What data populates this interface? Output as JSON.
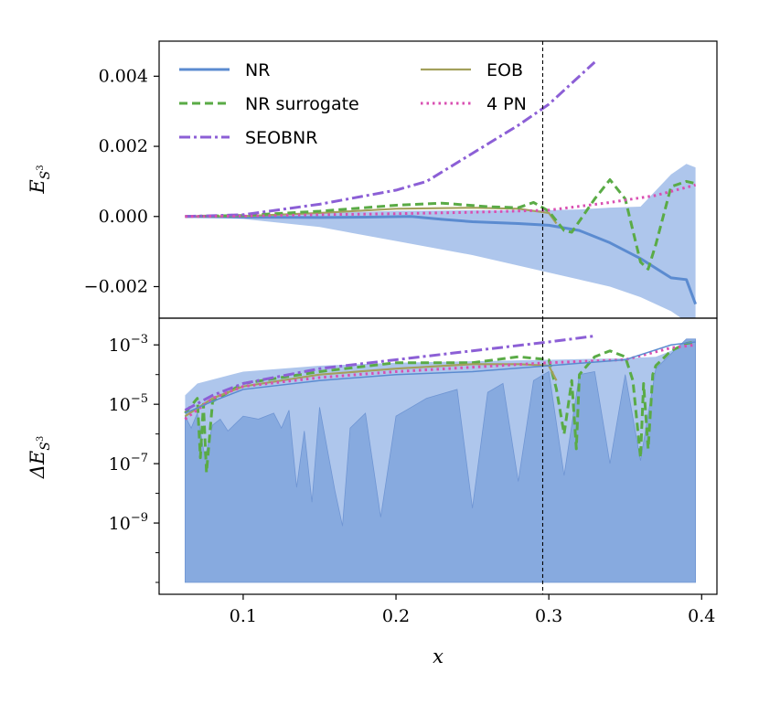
{
  "colors": {
    "nr": "#5b8bd0",
    "nr_surrogate": "#5aab46",
    "seobnr": "#8c5fd6",
    "eob": "#a3a05c",
    "pn4": "#d94fb2",
    "band_light": "#aec6ec",
    "band_dark": "#87aadf",
    "marker_line": "#000000"
  },
  "chart_data": [
    {
      "id": "top",
      "type": "line",
      "ylabel": "E_{S^3}",
      "xlim": [
        0.045,
        0.41
      ],
      "ylim": [
        -0.0029,
        0.005
      ],
      "yticks": [
        -0.002,
        0.0,
        0.002,
        0.004
      ],
      "ytick_labels": [
        "−0.002",
        "0.000",
        "0.002",
        "0.004"
      ],
      "vline_x": 0.296,
      "legend": {
        "placement": "top-left",
        "entries": [
          {
            "key": "nr",
            "label": "NR",
            "style": "solid"
          },
          {
            "key": "eob",
            "label": "EOB",
            "style": "solid"
          },
          {
            "key": "nr_surrogate",
            "label": "NR surrogate",
            "style": "dashed"
          },
          {
            "key": "pn4",
            "label": "4 PN",
            "style": "dotted"
          },
          {
            "key": "seobnr",
            "label": "SEOBNR",
            "style": "dashdot"
          }
        ]
      },
      "band": {
        "x": [
          0.062,
          0.1,
          0.15,
          0.2,
          0.25,
          0.3,
          0.32,
          0.34,
          0.36,
          0.38,
          0.39,
          0.396
        ],
        "upper": [
          0.0,
          3e-05,
          0.0001,
          0.00016,
          0.00018,
          0.00018,
          0.0002,
          0.00025,
          0.00028,
          0.0012,
          0.0015,
          0.0014
        ],
        "lower": [
          0.0,
          -7e-05,
          -0.0003,
          -0.0007,
          -0.0011,
          -0.0016,
          -0.0018,
          -0.002,
          -0.0023,
          -0.0027,
          -0.003,
          -0.003
        ]
      },
      "series": [
        {
          "key": "nr",
          "x": [
            0.062,
            0.1,
            0.15,
            0.18,
            0.21,
            0.23,
            0.25,
            0.28,
            0.3,
            0.32,
            0.34,
            0.36,
            0.38,
            0.39,
            0.396
          ],
          "y": [
            0.0,
            -2e-05,
            -3e-05,
            -2e-05,
            0.0,
            -8e-05,
            -0.00015,
            -0.0002,
            -0.00025,
            -0.0004,
            -0.00075,
            -0.0012,
            -0.00175,
            -0.0018,
            -0.0025
          ]
        },
        {
          "key": "eob",
          "x": [
            0.062,
            0.1,
            0.15,
            0.2,
            0.25,
            0.28,
            0.3,
            0.305
          ],
          "y": [
            0.0,
            1e-05,
            0.0001,
            0.00022,
            0.00025,
            0.00022,
            0.0001,
            -0.0002
          ]
        },
        {
          "key": "nr_surrogate",
          "x": [
            0.062,
            0.1,
            0.15,
            0.2,
            0.23,
            0.26,
            0.28,
            0.29,
            0.3,
            0.31,
            0.315,
            0.33,
            0.34,
            0.35,
            0.36,
            0.365,
            0.37,
            0.38,
            0.39,
            0.395
          ],
          "y": [
            0.0,
            3e-05,
            0.00015,
            0.00032,
            0.00038,
            0.00028,
            0.00025,
            0.0004,
            0.00015,
            -0.0004,
            -0.00045,
            0.0005,
            0.00105,
            0.0005,
            -0.0013,
            -0.0015,
            -0.0008,
            0.00085,
            0.001,
            0.00095
          ]
        },
        {
          "key": "seobnr",
          "x": [
            0.062,
            0.1,
            0.15,
            0.2,
            0.22,
            0.25,
            0.28,
            0.3,
            0.32,
            0.33
          ],
          "y": [
            0.0,
            5e-05,
            0.00035,
            0.00075,
            0.001,
            0.0018,
            0.0026,
            0.0032,
            0.004,
            0.0044
          ]
        },
        {
          "key": "pn4",
          "x": [
            0.062,
            0.1,
            0.15,
            0.2,
            0.25,
            0.3,
            0.34,
            0.37,
            0.396
          ],
          "y": [
            0.0,
            1e-05,
            5e-05,
            8e-05,
            0.00012,
            0.00018,
            0.0004,
            0.0006,
            0.0009
          ]
        }
      ]
    },
    {
      "id": "bottom",
      "type": "line",
      "ylabel": "ΔE_{S^3}",
      "xlabel": "x",
      "yscale": "log",
      "xlim": [
        0.045,
        0.41
      ],
      "ylim_exp": [
        -11.4,
        -2.1
      ],
      "xticks": [
        0.1,
        0.2,
        0.3,
        0.4
      ],
      "xtick_labels": [
        "0.1",
        "0.2",
        "0.3",
        "0.4"
      ],
      "yticks_exp": [
        -9,
        -7,
        -5,
        -3
      ],
      "ytick_bases": [
        "10",
        "10",
        "10",
        "10"
      ],
      "ytick_exps": [
        "−9",
        "−7",
        "−5",
        "−3"
      ],
      "vline_x": 0.296,
      "band_light": {
        "floor_exp": -11,
        "x": [
          0.062,
          0.07,
          0.1,
          0.15,
          0.2,
          0.25,
          0.3,
          0.35,
          0.37,
          0.38,
          0.39,
          0.396
        ],
        "y_exp": [
          -4.7,
          -4.3,
          -3.9,
          -3.7,
          -3.6,
          -3.55,
          -3.5,
          -3.45,
          -3.4,
          -3.2,
          -2.9,
          -2.9
        ]
      },
      "band_dark": {
        "floor_exp": -11,
        "x": [
          0.062,
          0.066,
          0.07,
          0.075,
          0.08,
          0.085,
          0.09,
          0.1,
          0.11,
          0.12,
          0.125,
          0.13,
          0.135,
          0.14,
          0.145,
          0.15,
          0.16,
          0.165,
          0.17,
          0.18,
          0.19,
          0.2,
          0.21,
          0.22,
          0.24,
          0.25,
          0.26,
          0.27,
          0.28,
          0.29,
          0.3,
          0.31,
          0.32,
          0.33,
          0.34,
          0.35,
          0.36,
          0.37,
          0.38,
          0.39,
          0.396
        ],
        "y_exp": [
          -5.4,
          -5.8,
          -5.3,
          -6.8,
          -5.7,
          -5.5,
          -5.9,
          -5.4,
          -5.5,
          -5.3,
          -5.8,
          -5.2,
          -7.8,
          -5.9,
          -8.3,
          -5.1,
          -7.9,
          -9.1,
          -5.8,
          -5.3,
          -8.8,
          -5.4,
          -5.1,
          -4.8,
          -4.5,
          -8.5,
          -4.6,
          -4.3,
          -7.6,
          -4.2,
          -3.9,
          -7.4,
          -4.0,
          -3.9,
          -7.0,
          -4.0,
          -6.9,
          -3.8,
          -3.3,
          -2.8,
          -2.8
        ]
      },
      "series": [
        {
          "key": "nr_surrogate",
          "x": [
            0.062,
            0.07,
            0.072,
            0.074,
            0.076,
            0.08,
            0.1,
            0.15,
            0.2,
            0.25,
            0.28,
            0.3,
            0.305,
            0.31,
            0.315,
            0.318,
            0.32,
            0.33,
            0.34,
            0.35,
            0.355,
            0.36,
            0.362,
            0.365,
            0.368,
            0.37,
            0.38,
            0.39,
            0.396
          ],
          "y_exp": [
            -5.3,
            -4.8,
            -6.8,
            -5.0,
            -7.3,
            -4.9,
            -4.3,
            -3.9,
            -3.6,
            -3.6,
            -3.4,
            -3.5,
            -4.5,
            -6.0,
            -4.2,
            -6.5,
            -4.0,
            -3.4,
            -3.2,
            -3.4,
            -4.2,
            -6.8,
            -4.3,
            -6.5,
            -4.0,
            -3.7,
            -3.2,
            -2.95,
            -2.9
          ]
        },
        {
          "key": "seobnr",
          "x": [
            0.062,
            0.08,
            0.1,
            0.15,
            0.2,
            0.25,
            0.3,
            0.33
          ],
          "y_exp": [
            -5.2,
            -4.7,
            -4.3,
            -3.8,
            -3.5,
            -3.2,
            -2.9,
            -2.7
          ]
        },
        {
          "key": "eob",
          "x": [
            0.062,
            0.08,
            0.1,
            0.15,
            0.2,
            0.25,
            0.28,
            0.3,
            0.305
          ],
          "y_exp": [
            -5.4,
            -4.8,
            -4.4,
            -4.0,
            -3.8,
            -3.65,
            -3.65,
            -3.7,
            -4.2
          ]
        },
        {
          "key": "pn4",
          "x": [
            0.062,
            0.08,
            0.1,
            0.15,
            0.2,
            0.25,
            0.3,
            0.35,
            0.38,
            0.396
          ],
          "y_exp": [
            -5.5,
            -4.8,
            -4.4,
            -4.1,
            -3.9,
            -3.75,
            -3.6,
            -3.5,
            -3.1,
            -3.0
          ]
        },
        {
          "key": "nr",
          "x": [
            0.062,
            0.08,
            0.1,
            0.15,
            0.2,
            0.25,
            0.3,
            0.35,
            0.38,
            0.396
          ],
          "y_exp": [
            -5.3,
            -4.9,
            -4.5,
            -4.2,
            -4.0,
            -3.9,
            -3.7,
            -3.5,
            -3.0,
            -2.9
          ]
        }
      ]
    }
  ]
}
